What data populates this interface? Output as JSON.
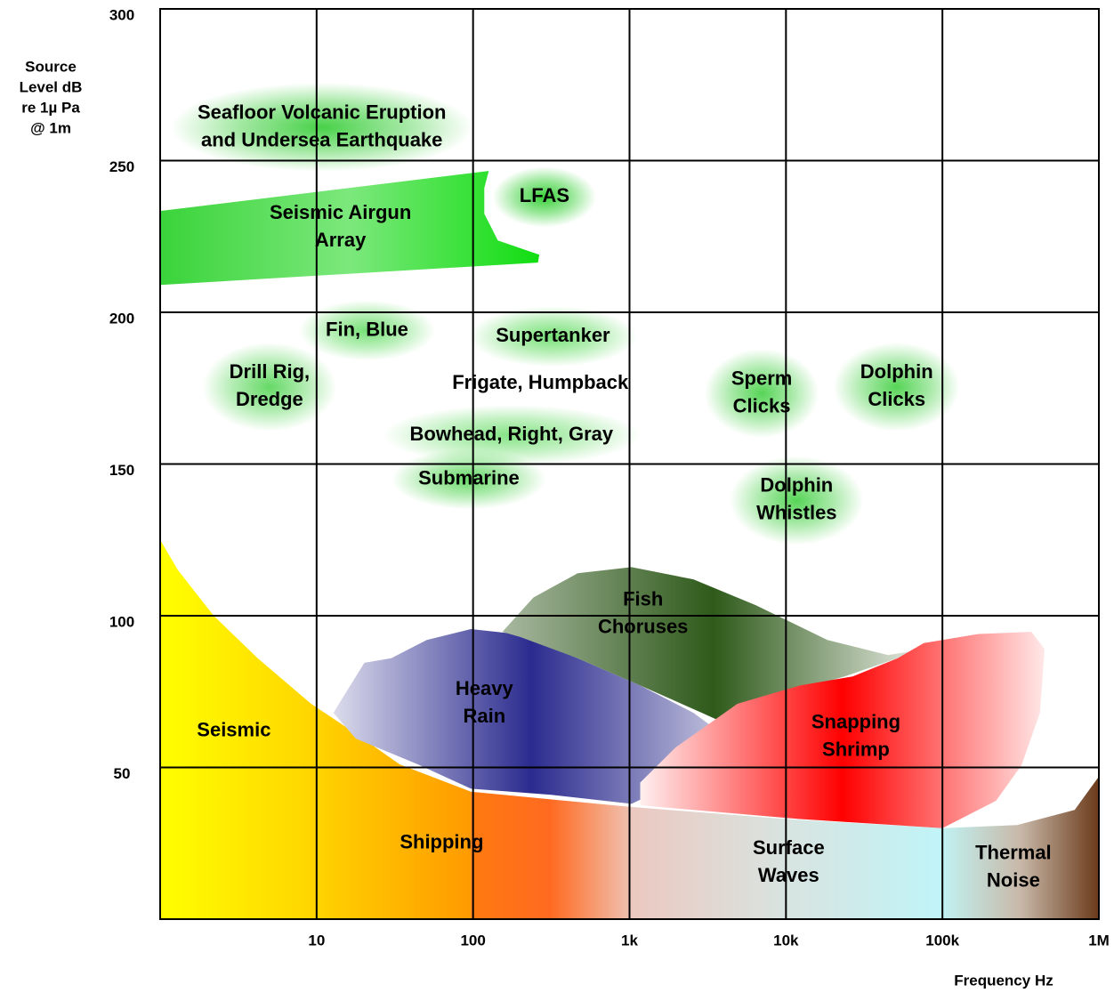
{
  "chart_data": {
    "type": "area",
    "y_label": [
      "Source",
      "Level dB",
      "re 1µ Pa",
      "@ 1m"
    ],
    "x_label": "Frequency Hz",
    "log_x": true,
    "grid": true,
    "xlim": [
      1,
      1000000
    ],
    "ylim": [
      0,
      300
    ],
    "xticks": [
      10,
      100,
      {
        "value": 1000,
        "label": "1k"
      },
      {
        "value": 10000,
        "label": "10k"
      },
      {
        "value": 100000,
        "label": "100k"
      },
      {
        "value": 1000000,
        "label": "1M"
      }
    ],
    "yticks": [
      50,
      100,
      150,
      200,
      250,
      300
    ],
    "regions": [
      {
        "name": [
          "Seismic"
        ],
        "colors": [
          "#ffff00",
          "#ffd400",
          "#ff9a00"
        ],
        "x": [
          1,
          1.3,
          2.2,
          4.2,
          9.2,
          18,
          34,
          97,
          97,
          1
        ],
        "y": [
          125,
          115,
          100,
          86,
          71,
          61,
          51,
          42,
          0,
          0
        ],
        "label_x": 2.96,
        "label_y": 62
      },
      {
        "name": [
          "Shipping"
        ],
        "colors": [
          "#ff7a10",
          "#ff6a20",
          "#f0c0b0"
        ],
        "x": [
          97,
          1000,
          1000,
          97
        ],
        "y": [
          42,
          37,
          0,
          0
        ],
        "label_x": 63,
        "label_y": 25
      },
      {
        "name": [
          "Surface",
          "Waves"
        ],
        "colors": [
          "#ecc8c0",
          "#d8e4e0",
          "#c0f4f8"
        ],
        "x": [
          1000,
          10000,
          100000,
          100000,
          1000
        ],
        "y": [
          37,
          33,
          30,
          0,
          0
        ],
        "label_x": 10400,
        "label_y": 18.5
      },
      {
        "name": [
          "Thermal",
          "Noise"
        ],
        "colors": [
          "#c0f2f2",
          "#c8b8a8",
          "#6b3a1a"
        ],
        "x": [
          100000,
          300000,
          700000,
          1000000,
          1000000,
          100000
        ],
        "y": [
          30,
          31,
          36,
          47,
          0,
          0
        ],
        "label_x": 284000,
        "label_y": 17
      },
      {
        "name": [
          "Heavy",
          "Rain"
        ],
        "colors": [
          "#dcdcec",
          "#2b2b8f",
          "#c8c8e0"
        ],
        "x": [
          12.8,
          20.2,
          30,
          50.6,
          97,
          188,
          466,
          1170,
          2560,
          4300,
          3300,
          1500,
          1030,
          316,
          97,
          44.5,
          17.8
        ],
        "y": [
          68,
          84.5,
          86,
          92,
          95.6,
          94,
          86,
          77,
          68,
          59.5,
          48,
          42,
          38,
          41,
          43,
          51,
          59.5
        ],
        "label_x": 118,
        "label_y": 71
      },
      {
        "name": [
          "Fish",
          "Choruses"
        ],
        "colors": [
          "#a8b8a0",
          "#2e5a1a",
          "#e8ece4"
        ],
        "x": [
          154,
          243,
          466,
          1030,
          2560,
          6400,
          18400,
          45000,
          76000,
          23700,
          9500,
          4300,
          2900,
          1170,
          466,
          200
        ],
        "y": [
          94.7,
          106,
          114,
          116,
          112,
          103.5,
          92,
          87,
          89,
          80,
          74,
          64,
          68,
          77,
          86,
          93
        ],
        "label_x": 1220,
        "label_y": 100.6
      },
      {
        "name": [
          "Snapping",
          "Shrimp"
        ],
        "colors": [
          "#fff0f0",
          "#ff0000",
          "#ffe8e8"
        ],
        "x": [
          1170,
          1970,
          4900,
          12300,
          26700,
          51800,
          76000,
          170000,
          370000,
          450000,
          420000,
          320000,
          220000,
          100000,
          12300,
          1170
        ],
        "y": [
          45,
          56.6,
          71,
          77,
          80,
          86,
          91,
          94,
          94.7,
          89,
          68,
          50.7,
          39,
          30,
          33,
          37.5
        ],
        "label_x": 28000,
        "label_y": 60
      },
      {
        "name": [
          "Seismic Airgun",
          "Array"
        ],
        "colors": [
          "#3ad43a",
          "#7ce87c",
          "#11dd11"
        ],
        "x": [
          1,
          126,
          118,
          118,
          144,
          265,
          260,
          1
        ],
        "y": [
          233.4,
          246.6,
          241,
          232.5,
          223.7,
          219,
          216.4,
          209
        ],
        "label_x": 14.2,
        "label_y": 228
      }
    ],
    "sources": [
      {
        "name": [
          "Seafloor Volcanic Eruption",
          "and Undersea Earthquake"
        ],
        "x": 10.8,
        "y": 261,
        "glow": "#33cc33"
      },
      {
        "name": [
          "LFAS"
        ],
        "x": 286,
        "y": 238,
        "glow": "#22cc22"
      },
      {
        "name": [
          "Fin, Blue"
        ],
        "x": 21,
        "y": 194,
        "glow": "#66dd66"
      },
      {
        "name": [
          "Supertanker"
        ],
        "x": 324,
        "y": 192,
        "glow": "#66dd66"
      },
      {
        "name": [
          "Drill Rig,",
          "Dredge"
        ],
        "x": 5,
        "y": 175.4,
        "glow": "#55d555"
      },
      {
        "name": [
          "Frigate, Humpback"
        ],
        "x": 269,
        "y": 176.5
      },
      {
        "name": [
          "Bowhead, Right, Gray"
        ],
        "x": 176,
        "y": 159.5,
        "glow": "#77e077"
      },
      {
        "name": [
          "Submarine"
        ],
        "x": 94,
        "y": 145,
        "glow": "#55d555"
      },
      {
        "name": [
          "Sperm",
          "Clicks"
        ],
        "x": 7000,
        "y": 173.3,
        "glow": "#44d044"
      },
      {
        "name": [
          "Dolphin",
          "Clicks"
        ],
        "x": 51000,
        "y": 175.4,
        "glow": "#44d044"
      },
      {
        "name": [
          "Dolphin",
          "Whistles"
        ],
        "x": 11700,
        "y": 138,
        "glow": "#44d044"
      }
    ]
  }
}
